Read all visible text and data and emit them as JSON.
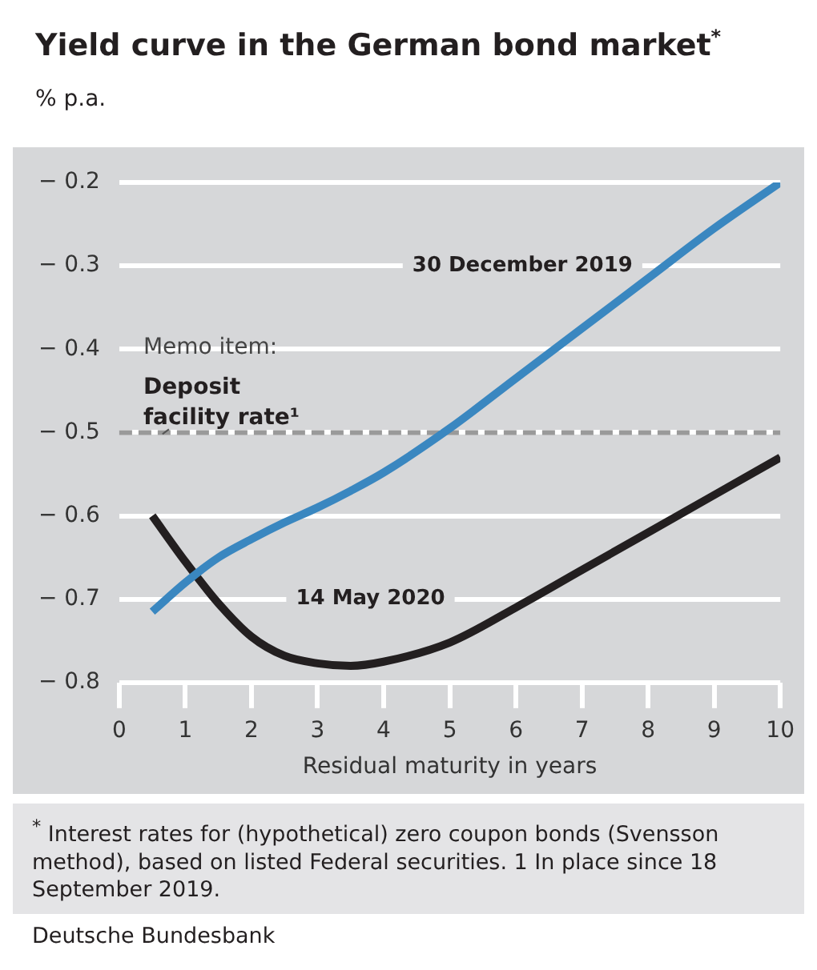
{
  "chart_data": {
    "type": "line",
    "title": "Yield curve in the German bond market$^{*}$",
    "ylabel": "% p.a.",
    "xlabel": "Residual maturity in years",
    "x": [
      0.5,
      1,
      1.5,
      2,
      2.5,
      3,
      3.5,
      4,
      5,
      6,
      7,
      8,
      9,
      10
    ],
    "series": [
      {
        "name": "30 December 2019",
        "color": "#3a87c0",
        "values": [
          -0.715,
          -0.68,
          -0.65,
          -0.628,
          -0.608,
          -0.59,
          -0.57,
          -0.548,
          -0.495,
          -0.435,
          -0.375,
          -0.315,
          -0.255,
          -0.2
        ]
      },
      {
        "name": "14 May 2020",
        "color": "#231f20",
        "values": [
          -0.6,
          -0.655,
          -0.705,
          -0.745,
          -0.768,
          -0.777,
          -0.78,
          -0.775,
          -0.752,
          -0.71,
          -0.665,
          -0.62,
          -0.575,
          -0.53
        ]
      }
    ],
    "xlim": [
      0,
      10
    ],
    "xticks": [
      0,
      1,
      2,
      3,
      4,
      5,
      6,
      7,
      8,
      9,
      10
    ],
    "ylim": [
      -0.8,
      -0.2
    ],
    "yticks": [
      {
        "value": -0.8,
        "label": "− 0.8"
      },
      {
        "value": -0.7,
        "label": "− 0.7"
      },
      {
        "value": -0.6,
        "label": "− 0.6"
      },
      {
        "value": -0.5,
        "label": "− 0.5"
      },
      {
        "value": -0.4,
        "label": "− 0.4"
      },
      {
        "value": -0.3,
        "label": "− 0.3"
      },
      {
        "value": -0.2,
        "label": "− 0.2"
      }
    ],
    "ref_lines": [
      {
        "axis": "y",
        "value": -0.5,
        "label": "Memo item:\nDeposit facility rate¹",
        "color": "#9a9a9a",
        "line_style": "dashed"
      }
    ],
    "grid": "y",
    "legend": false,
    "marker": "none",
    "line_style": "solid",
    "annotations": [
      "$^{*}$ Interest rates for (hypothetical) zero coupon bonds (Svensson method), based on listed Federal securities. 1 In place since 18 September 2019.",
      "Deutsche Bundesbank"
    ]
  }
}
